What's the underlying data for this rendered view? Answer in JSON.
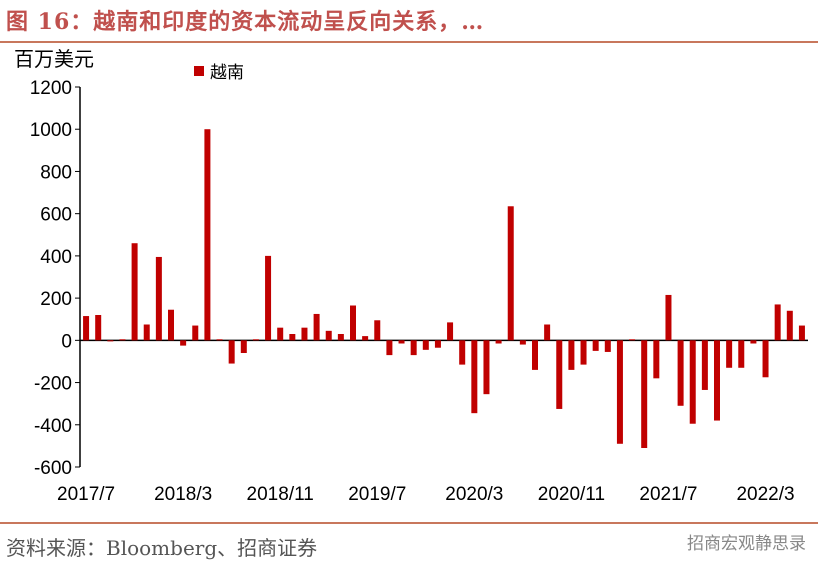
{
  "header": {
    "title": "图 16：越南和印度的资本流动呈反向关系，…"
  },
  "footer": {
    "source": "资料来源：Bloomberg、招商证券",
    "watermark": "招商宏观静思录"
  },
  "colors": {
    "bar": "#c00000",
    "accent": "#c0504d"
  },
  "chart_data": {
    "type": "bar",
    "title": "",
    "ylabel": "百万美元",
    "xlabel": "",
    "legend": [
      "越南"
    ],
    "legend_position": "top-left",
    "ylim": [
      -600,
      1200
    ],
    "yticks": [
      1200,
      1000,
      800,
      600,
      400,
      200,
      0,
      -200,
      -400,
      -600
    ],
    "start": "2017/7",
    "xtick_labels": [
      "2017/7",
      "2018/3",
      "2018/11",
      "2019/7",
      "2020/3",
      "2020/11",
      "2021/7",
      "2022/3"
    ],
    "xtick_every": 8,
    "series": [
      {
        "name": "越南",
        "values": [
          115,
          120,
          -5,
          5,
          460,
          75,
          395,
          145,
          -25,
          70,
          1000,
          5,
          -110,
          -60,
          5,
          400,
          60,
          30,
          60,
          125,
          45,
          30,
          165,
          20,
          95,
          -70,
          -15,
          -70,
          -45,
          -35,
          85,
          -115,
          -345,
          -255,
          -15,
          635,
          -20,
          -140,
          75,
          -325,
          -140,
          -115,
          -50,
          -55,
          -490,
          5,
          -510,
          -180,
          215,
          -310,
          -395,
          -235,
          -380,
          -130,
          -130,
          -15,
          -175,
          170,
          140,
          70
        ]
      }
    ]
  }
}
